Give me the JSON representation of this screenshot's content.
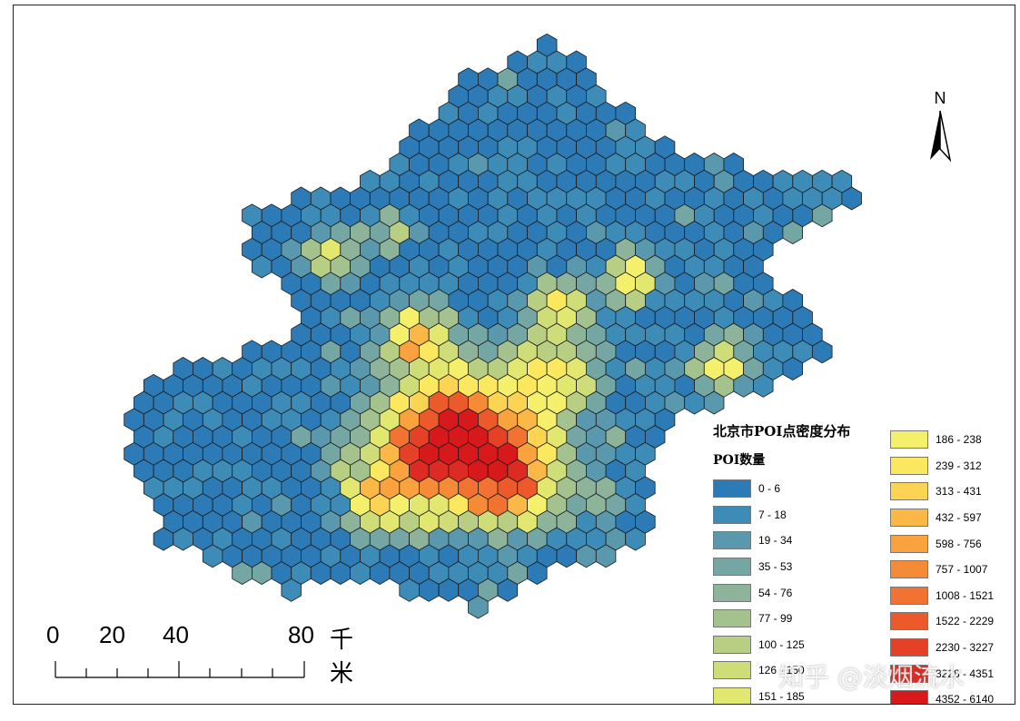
{
  "north_arrow": {
    "label": "N"
  },
  "legend": {
    "title": "北京市POI点密度分布",
    "subtitle": "POI数量",
    "classes": [
      {
        "label": "0 - 6",
        "color": "#2c7bb6"
      },
      {
        "label": "7 - 18",
        "color": "#3d8cb8"
      },
      {
        "label": "19 - 34",
        "color": "#5a99ad"
      },
      {
        "label": "35 - 53",
        "color": "#74a7a4"
      },
      {
        "label": "54 - 76",
        "color": "#8db49a"
      },
      {
        "label": "77 - 99",
        "color": "#a3c28d"
      },
      {
        "label": "100 - 125",
        "color": "#b8cf83"
      },
      {
        "label": "126 - 150",
        "color": "#cfdd78"
      },
      {
        "label": "151 - 185",
        "color": "#e2e86f"
      },
      {
        "label": "186 - 238",
        "color": "#f4f06c"
      },
      {
        "label": "239 - 312",
        "color": "#fbe85f"
      },
      {
        "label": "313 - 431",
        "color": "#fcd453"
      },
      {
        "label": "432 - 597",
        "color": "#fcb847"
      },
      {
        "label": "598 - 756",
        "color": "#f9a23e"
      },
      {
        "label": "757 - 1007",
        "color": "#f68b37"
      },
      {
        "label": "1008 - 1521",
        "color": "#f27331"
      },
      {
        "label": "1522 - 2229",
        "color": "#ec5a2b"
      },
      {
        "label": "2230 - 3227",
        "color": "#e54126"
      },
      {
        "label": "3228 - 4351",
        "color": "#dd2a22"
      },
      {
        "label": "4352 - 6140",
        "color": "#d7191c"
      }
    ]
  },
  "scale_bar": {
    "ticks": [
      "0",
      "20",
      "40",
      "80"
    ],
    "unit": "千米"
  },
  "watermark": "知乎 @淡烟流水"
}
